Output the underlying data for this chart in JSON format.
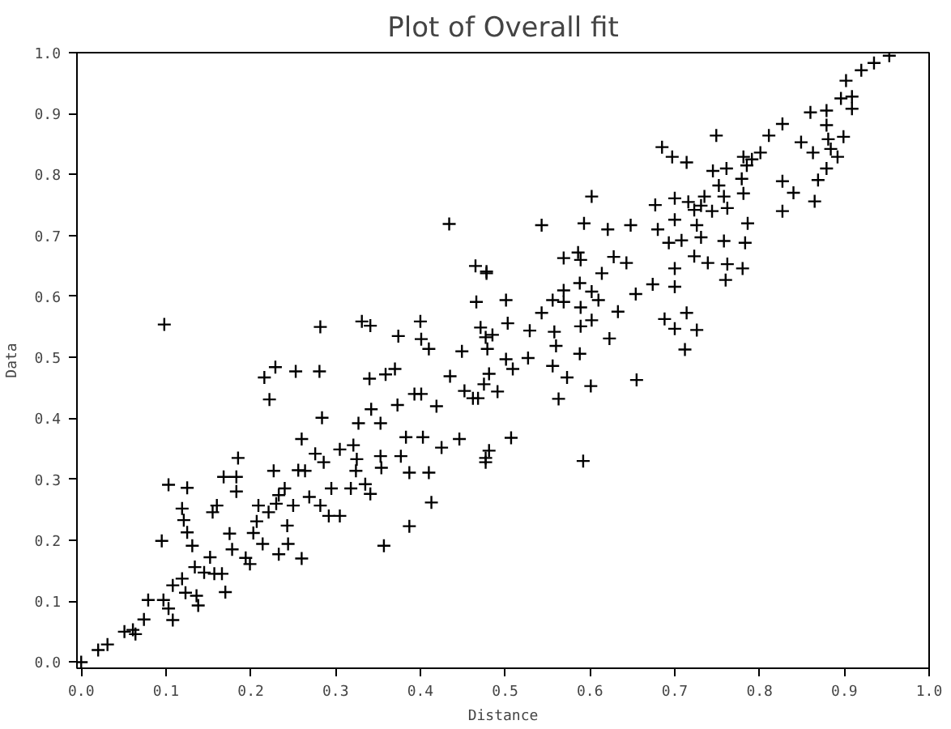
{
  "chart_data": {
    "type": "scatter",
    "title": "Plot of Overall fit",
    "xlabel": "Distance",
    "ylabel": "Data",
    "marker": "cross",
    "grid": false,
    "color": "#000000",
    "xlim": [
      -0.005,
      1.0
    ],
    "ylim": [
      -0.01,
      1.0
    ],
    "xticks": [
      {
        "value": 0,
        "label": "0.0"
      },
      {
        "value": 0.1,
        "label": "0.1"
      },
      {
        "value": 0.2,
        "label": "0.2"
      },
      {
        "value": 0.3,
        "label": "0.3"
      },
      {
        "value": 0.4,
        "label": "0.4"
      },
      {
        "value": 0.5,
        "label": "0.5"
      },
      {
        "value": 0.6,
        "label": "0.6"
      },
      {
        "value": 0.7,
        "label": "0.7"
      },
      {
        "value": 0.8,
        "label": "0.8"
      },
      {
        "value": 0.9,
        "label": "0.9"
      },
      {
        "value": 1.0,
        "label": "1.0"
      }
    ],
    "yticks": [
      {
        "value": 0,
        "label": "0.0"
      },
      {
        "value": 0.1,
        "label": "0.1"
      },
      {
        "value": 0.2,
        "label": "0.2"
      },
      {
        "value": 0.3,
        "label": "0.3"
      },
      {
        "value": 0.4,
        "label": "0.4"
      },
      {
        "value": 0.5,
        "label": "0.5"
      },
      {
        "value": 0.6,
        "label": "0.6"
      },
      {
        "value": 0.7,
        "label": "0.7"
      },
      {
        "value": 0.8,
        "label": "0.8"
      },
      {
        "value": 0.9,
        "label": "0.9"
      },
      {
        "value": 1.0,
        "label": "1.0"
      }
    ],
    "x": [
      0.0,
      0.02,
      0.031,
      0.051,
      0.061,
      0.064,
      0.074,
      0.079,
      0.095,
      0.097,
      0.103,
      0.108,
      0.108,
      0.103,
      0.125,
      0.119,
      0.121,
      0.125,
      0.131,
      0.119,
      0.123,
      0.134,
      0.136,
      0.138,
      0.145,
      0.152,
      0.157,
      0.155,
      0.16,
      0.166,
      0.17,
      0.168,
      0.175,
      0.178,
      0.183,
      0.185,
      0.183,
      0.194,
      0.199,
      0.203,
      0.207,
      0.209,
      0.214,
      0.221,
      0.216,
      0.222,
      0.227,
      0.229,
      0.23,
      0.233,
      0.233,
      0.24,
      0.243,
      0.244,
      0.253,
      0.25,
      0.256,
      0.26,
      0.26,
      0.264,
      0.269,
      0.281,
      0.284,
      0.282,
      0.276,
      0.286,
      0.292,
      0.295,
      0.305,
      0.305,
      0.318,
      0.321,
      0.325,
      0.324,
      0.327,
      0.34,
      0.335,
      0.341,
      0.342,
      0.353,
      0.354,
      0.353,
      0.357,
      0.359,
      0.37,
      0.373,
      0.377,
      0.383,
      0.387,
      0.387,
      0.393,
      0.401,
      0.403,
      0.413,
      0.41,
      0.419,
      0.425,
      0.435,
      0.446,
      0.452,
      0.462,
      0.468,
      0.481,
      0.481,
      0.098,
      0.282,
      0.331,
      0.341,
      0.374,
      0.4,
      0.401,
      0.41,
      0.434,
      0.449,
      0.465,
      0.478,
      0.466,
      0.471,
      0.477,
      0.953,
      0.935,
      0.92,
      0.902,
      0.896,
      0.909,
      0.909,
      0.86,
      0.879,
      0.879,
      0.827,
      0.811,
      0.749,
      0.899,
      0.849,
      0.881,
      0.863,
      0.884,
      0.892,
      0.685,
      0.697,
      0.714,
      0.781,
      0.791,
      0.801,
      0.785,
      0.745,
      0.761,
      0.879,
      0.779,
      0.869,
      0.827,
      0.84,
      0.865,
      0.827,
      0.752,
      0.758,
      0.781,
      0.762,
      0.735,
      0.7,
      0.677,
      0.716,
      0.731,
      0.744,
      0.723,
      0.602,
      0.543,
      0.593,
      0.621,
      0.648,
      0.68,
      0.7,
      0.726,
      0.786,
      0.693,
      0.708,
      0.731,
      0.758,
      0.783,
      0.723,
      0.739,
      0.762,
      0.78,
      0.7,
      0.569,
      0.586,
      0.589,
      0.628,
      0.643,
      0.614,
      0.674,
      0.654,
      0.7,
      0.76,
      0.569,
      0.588,
      0.602,
      0.478,
      0.501,
      0.556,
      0.569,
      0.589,
      0.633,
      0.61,
      0.543,
      0.529,
      0.558,
      0.589,
      0.602,
      0.503,
      0.485,
      0.623,
      0.56,
      0.588,
      0.479,
      0.501,
      0.509,
      0.527,
      0.556,
      0.688,
      0.714,
      0.7,
      0.726,
      0.712,
      0.655,
      0.475,
      0.491,
      0.573,
      0.563,
      0.601,
      0.507,
      0.477,
      0.477,
      0.592
    ],
    "values": [
      0.0,
      0.02,
      0.029,
      0.05,
      0.053,
      0.046,
      0.07,
      0.102,
      0.199,
      0.102,
      0.088,
      0.069,
      0.126,
      0.291,
      0.286,
      0.252,
      0.233,
      0.213,
      0.191,
      0.137,
      0.114,
      0.156,
      0.109,
      0.093,
      0.147,
      0.172,
      0.145,
      0.246,
      0.257,
      0.145,
      0.115,
      0.304,
      0.211,
      0.185,
      0.28,
      0.335,
      0.304,
      0.171,
      0.161,
      0.212,
      0.231,
      0.257,
      0.194,
      0.246,
      0.467,
      0.431,
      0.314,
      0.484,
      0.26,
      0.274,
      0.177,
      0.285,
      0.224,
      0.194,
      0.477,
      0.257,
      0.315,
      0.17,
      0.366,
      0.314,
      0.271,
      0.477,
      0.401,
      0.257,
      0.342,
      0.328,
      0.24,
      0.285,
      0.24,
      0.349,
      0.285,
      0.356,
      0.333,
      0.314,
      0.392,
      0.465,
      0.292,
      0.276,
      0.415,
      0.338,
      0.319,
      0.392,
      0.191,
      0.472,
      0.481,
      0.422,
      0.338,
      0.369,
      0.223,
      0.311,
      0.44,
      0.44,
      0.369,
      0.262,
      0.311,
      0.42,
      0.352,
      0.469,
      0.366,
      0.445,
      0.433,
      0.433,
      0.347,
      0.473,
      0.554,
      0.55,
      0.559,
      0.552,
      0.535,
      0.559,
      0.53,
      0.514,
      0.719,
      0.51,
      0.65,
      0.638,
      0.591,
      0.549,
      0.533,
      0.995,
      0.983,
      0.971,
      0.954,
      0.925,
      0.928,
      0.908,
      0.902,
      0.905,
      0.881,
      0.883,
      0.864,
      0.864,
      0.862,
      0.853,
      0.858,
      0.836,
      0.842,
      0.829,
      0.845,
      0.829,
      0.82,
      0.829,
      0.825,
      0.836,
      0.815,
      0.806,
      0.81,
      0.81,
      0.793,
      0.791,
      0.789,
      0.77,
      0.756,
      0.74,
      0.782,
      0.764,
      0.769,
      0.745,
      0.764,
      0.761,
      0.75,
      0.755,
      0.749,
      0.74,
      0.742,
      0.764,
      0.717,
      0.72,
      0.71,
      0.717,
      0.71,
      0.726,
      0.717,
      0.72,
      0.688,
      0.692,
      0.697,
      0.691,
      0.688,
      0.666,
      0.655,
      0.653,
      0.646,
      0.646,
      0.663,
      0.672,
      0.66,
      0.665,
      0.655,
      0.638,
      0.62,
      0.604,
      0.616,
      0.627,
      0.61,
      0.622,
      0.608,
      0.641,
      0.594,
      0.594,
      0.591,
      0.582,
      0.575,
      0.594,
      0.573,
      0.544,
      0.542,
      0.551,
      0.561,
      0.556,
      0.537,
      0.531,
      0.519,
      0.506,
      0.514,
      0.497,
      0.481,
      0.499,
      0.486,
      0.563,
      0.573,
      0.547,
      0.545,
      0.513,
      0.463,
      0.456,
      0.444,
      0.467,
      0.432,
      0.453,
      0.368,
      0.335,
      0.328,
      0.33
    ]
  }
}
